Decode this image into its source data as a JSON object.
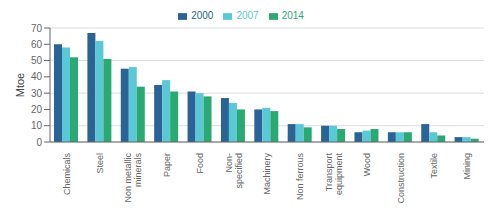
{
  "chart_data": {
    "type": "bar",
    "categories": [
      "Chemicals",
      "Steel",
      "Non metallic\nminerals",
      "Paper",
      "Food",
      "Non-\nspecified",
      "Machinery",
      "Non ferrous",
      "Transport\nequipment",
      "Wood",
      "Construction",
      "Textile",
      "Mining"
    ],
    "series": [
      {
        "name": "2000",
        "color": "#2a6496",
        "values": [
          60,
          67,
          45,
          35,
          31,
          27,
          20,
          11,
          10,
          6,
          6,
          11,
          3
        ]
      },
      {
        "name": "2007",
        "color": "#5bc8d5",
        "values": [
          58,
          62,
          46,
          38,
          30,
          24,
          21,
          11,
          10,
          7,
          6,
          6,
          3
        ]
      },
      {
        "name": "2014",
        "color": "#2aaa72",
        "values": [
          52,
          51,
          34,
          31,
          28,
          20,
          19,
          9,
          8,
          8,
          6,
          4,
          2
        ]
      }
    ],
    "ylabel": "Mtoe",
    "ylim": [
      0,
      70
    ],
    "yticks": [
      0,
      10,
      20,
      30,
      40,
      50,
      60,
      70
    ],
    "grid": true,
    "legend": "upper center"
  }
}
